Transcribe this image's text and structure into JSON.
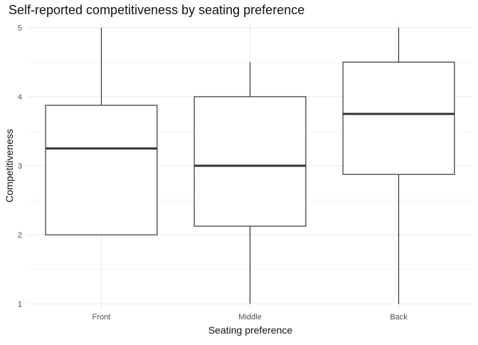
{
  "chart_data": {
    "type": "boxplot",
    "title": "Self-reported competitiveness by seating preference",
    "xlabel": "Seating preference",
    "ylabel": "Competitiveness",
    "ylim": [
      0.93,
      5.07
    ],
    "yticks": [
      1,
      2,
      3,
      4,
      5
    ],
    "grid": true,
    "legend": "none",
    "categories": [
      "Front",
      "Middle",
      "Back"
    ],
    "boxes": [
      {
        "category": "Front",
        "min": 2.0,
        "q1": 2.0,
        "median": 3.25,
        "q3": 3.875,
        "max": 5.0
      },
      {
        "category": "Middle",
        "min": 1.0,
        "q1": 2.125,
        "median": 3.0,
        "q3": 4.0,
        "max": 4.5
      },
      {
        "category": "Back",
        "min": 1.0,
        "q1": 2.875,
        "median": 3.75,
        "q3": 4.5,
        "max": 5.0
      }
    ],
    "colors": {
      "box_fill": "#ffffff",
      "box_line": "#333333",
      "grid": "#ebebeb"
    }
  }
}
